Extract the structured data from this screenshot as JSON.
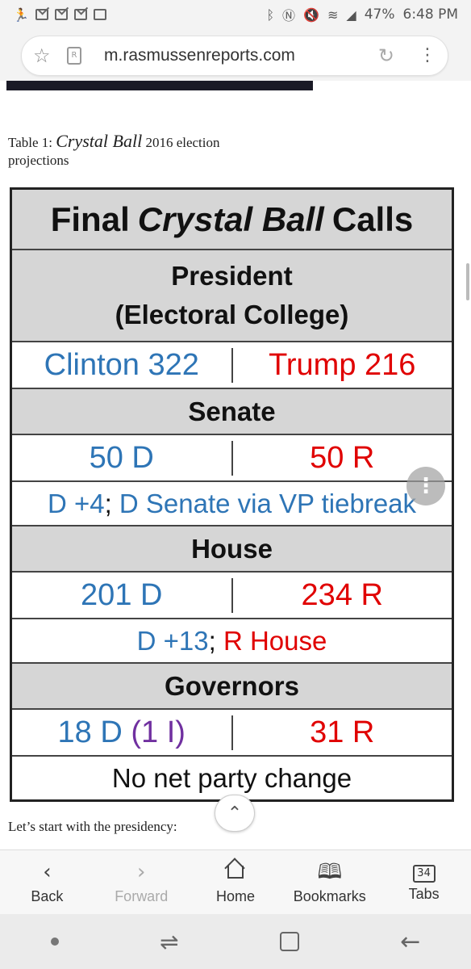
{
  "status_bar": {
    "battery": "47%",
    "time": "6:48 PM"
  },
  "browser": {
    "url": "m.rasmussenreports.com"
  },
  "article": {
    "caption_prefix": "Table 1: ",
    "caption_italic": "Crystal Ball",
    "caption_suffix": " 2016 election projections",
    "after_text": "Let’s start with the presidency:"
  },
  "table": {
    "title_part1": "Final",
    "title_italic": "Crystal Ball",
    "title_part2": "Calls",
    "president_header_line1": "President",
    "president_header_line2": "(Electoral College)",
    "president_left": "Clinton 322",
    "president_right": "Trump 216",
    "senate_header": "Senate",
    "senate_left": "50 D",
    "senate_right": "50 R",
    "senate_note_part1": "D +4",
    "senate_note_sep": ";",
    "senate_note_part2": " D Senate via VP tiebreak",
    "house_header": "House",
    "house_left": "201 D",
    "house_right": "234 R",
    "house_note_part1": "D +13",
    "house_note_sep": ";",
    "house_note_part2": " R House",
    "governors_header": "Governors",
    "governors_left_part1": "18 D ",
    "governors_left_part2": "(1 I)",
    "governors_right": "31 R",
    "governors_note": "No net party change"
  },
  "toolbar": {
    "back": "Back",
    "forward": "Forward",
    "home": "Home",
    "bookmarks": "Bookmarks",
    "tabs": "Tabs",
    "tabs_count": "34"
  },
  "colors": {
    "democrat_blue": "#2e75b6",
    "republican_red": "#e00000",
    "independent_purple": "#7030a0"
  }
}
